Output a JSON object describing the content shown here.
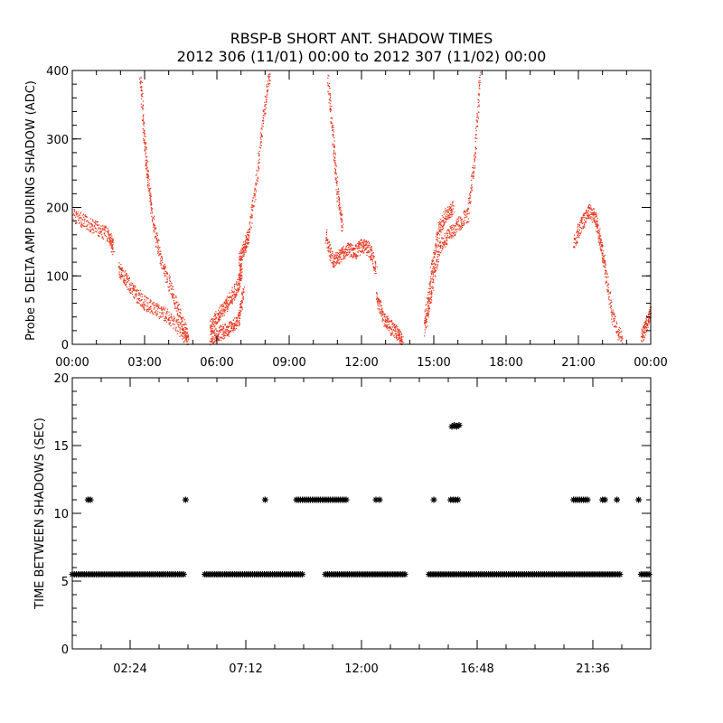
{
  "colors": {
    "background": "#ffffff",
    "axes": "#000000",
    "top_series": "#e8341c",
    "bottom_series": "#000000"
  },
  "chart_data": [
    {
      "type": "scatter",
      "title": "RBSP-B SHORT ANT. SHADOW TIMES",
      "subtitle": "2012 306 (11/01) 00:00 to 2012 307 (11/02) 00:00",
      "xlabel": "",
      "ylabel": "Probe 5 DELTA AMP DURING SHADOW (ADC)",
      "x_unit": "hours since 2012-11-01 00:00",
      "xlim": [
        0,
        24
      ],
      "ylim": [
        0,
        400
      ],
      "x_ticks": [
        "00:00",
        "03:00",
        "06:00",
        "09:00",
        "12:00",
        "15:00",
        "18:00",
        "21:00",
        "00:00"
      ],
      "y_ticks": [
        "0",
        "100",
        "200",
        "300",
        "400"
      ],
      "grid": false,
      "series": [
        {
          "color": "#e8341c",
          "marker": "dot",
          "segments": [
            {
              "x": [
                0.0,
                0.5,
                1.0,
                1.5,
                1.7
              ],
              "y": [
                190,
                180,
                170,
                160,
                140
              ]
            },
            {
              "x": [
                1.9,
                2.2,
                2.6,
                3.0,
                3.5,
                4.0,
                4.5,
                4.8
              ],
              "y": [
                110,
                95,
                75,
                60,
                50,
                40,
                20,
                5
              ]
            },
            {
              "x": [
                2.8,
                2.95,
                3.1,
                3.3,
                3.6,
                4.0,
                4.4,
                4.8
              ],
              "y": [
                400,
                310,
                250,
                190,
                130,
                90,
                50,
                10
              ]
            },
            {
              "x": [
                5.7,
                6.0,
                6.3,
                6.6,
                6.9,
                7.1
              ],
              "y": [
                10,
                15,
                20,
                25,
                40,
                80
              ]
            },
            {
              "x": [
                5.7,
                6.0,
                6.3,
                6.6,
                6.9,
                7.0
              ],
              "y": [
                25,
                40,
                55,
                70,
                90,
                110
              ]
            },
            {
              "x": [
                6.9,
                7.1,
                7.3,
                7.6,
                7.9,
                8.2
              ],
              "y": [
                120,
                140,
                160,
                230,
                330,
                400
              ]
            },
            {
              "x": [
                10.5,
                10.8,
                11.1,
                11.4,
                11.7,
                12.0,
                12.3,
                12.6
              ],
              "y": [
                160,
                120,
                130,
                140,
                135,
                145,
                140,
                110
              ]
            },
            {
              "x": [
                10.6,
                10.8,
                11.0,
                11.2
              ],
              "y": [
                390,
                300,
                220,
                170
              ]
            },
            {
              "x": [
                12.6,
                12.9,
                13.2,
                13.5,
                13.7
              ],
              "y": [
                70,
                40,
                25,
                15,
                5
              ]
            },
            {
              "x": [
                14.6,
                14.9,
                15.2,
                15.6,
                16.0,
                16.4,
                16.7,
                16.9
              ],
              "y": [
                20,
                80,
                140,
                160,
                175,
                190,
                280,
                400
              ]
            },
            {
              "x": [
                14.6,
                14.9,
                15.2,
                15.5,
                15.8
              ],
              "y": [
                30,
                110,
                170,
                190,
                200
              ]
            },
            {
              "x": [
                20.8,
                21.1,
                21.4,
                21.7,
                21.9,
                22.1,
                22.4,
                22.8
              ],
              "y": [
                150,
                175,
                195,
                185,
                150,
                110,
                40,
                5
              ]
            },
            {
              "x": [
                23.6,
                23.8,
                24.0
              ],
              "y": [
                10,
                30,
                50
              ]
            }
          ]
        }
      ]
    },
    {
      "type": "scatter",
      "title": "",
      "xlabel": "",
      "ylabel": "TIME BETWEEN SHADOWS (SEC)",
      "x_unit": "hours since 2012-11-01 00:00",
      "xlim": [
        0,
        24
      ],
      "ylim": [
        0,
        20
      ],
      "x_ticks": [
        "02:24",
        "07:12",
        "12:00",
        "16:48",
        "21:36"
      ],
      "y_ticks": [
        "0",
        "5",
        "10",
        "15",
        "20"
      ],
      "grid": false,
      "series": [
        {
          "color": "#000000",
          "marker": "asterisk",
          "bands": [
            {
              "x_start": 0.0,
              "x_end": 4.7,
              "y": 5.5
            },
            {
              "x_start": 5.5,
              "x_end": 9.6,
              "y": 5.5
            },
            {
              "x_start": 10.5,
              "x_end": 13.8,
              "y": 5.5
            },
            {
              "x_start": 14.8,
              "x_end": 22.8,
              "y": 5.5
            },
            {
              "x_start": 23.6,
              "x_end": 24.0,
              "y": 5.5
            },
            {
              "x_start": 9.3,
              "x_end": 11.4,
              "y": 11.0
            },
            {
              "x_start": 20.8,
              "x_end": 21.4,
              "y": 11.0
            }
          ],
          "points": {
            "x": [
              0.65,
              0.75,
              4.7,
              8.0,
              12.6,
              12.75,
              15.0,
              15.7,
              15.8,
              15.9,
              16.0,
              22.0,
              22.1,
              22.6,
              23.5,
              15.75,
              15.85,
              15.95,
              16.05
            ],
            "y": [
              11,
              11,
              11,
              11,
              11,
              11,
              11,
              11,
              11,
              11,
              11,
              11,
              11,
              11,
              11,
              16.4,
              16.5,
              16.4,
              16.5
            ]
          }
        }
      ]
    }
  ]
}
